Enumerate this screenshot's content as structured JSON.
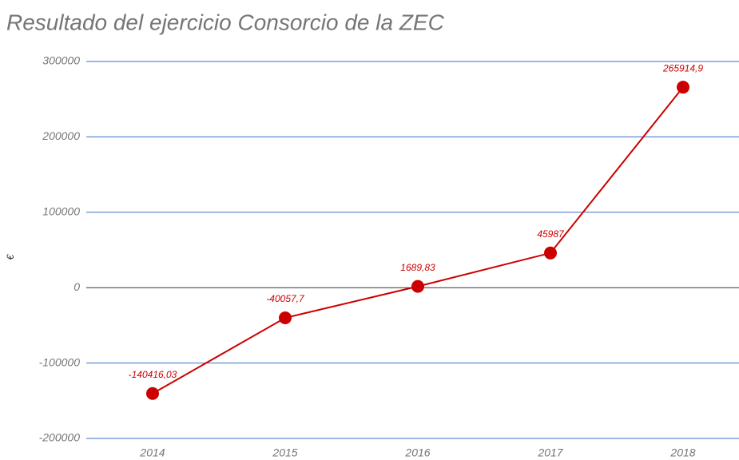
{
  "chart_data": {
    "type": "line",
    "title": "Resultado del ejercicio Consorcio de la ZEC",
    "y_label": "€",
    "categories": [
      "2014",
      "2015",
      "2016",
      "2017",
      "2018"
    ],
    "values": [
      -140416.03,
      -40057.7,
      1689.83,
      45987,
      265914.9
    ],
    "value_labels": [
      "-140416,03",
      "-40057,7",
      "1689,83",
      "45987",
      "265914,9"
    ],
    "color": "#cc0000",
    "ylim": [
      -200000,
      300000
    ],
    "yticks": [
      -200000,
      -100000,
      0,
      100000,
      200000,
      300000
    ],
    "grid": true,
    "grid_color": "#3b6fc6"
  }
}
